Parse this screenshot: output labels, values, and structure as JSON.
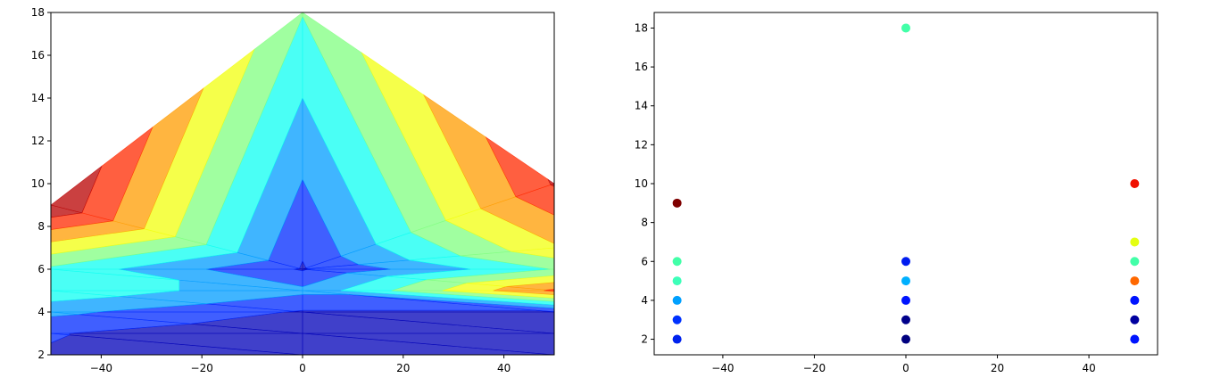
{
  "chart_data": [
    {
      "type": "contourf",
      "title": "",
      "xlabel": "",
      "ylabel": "",
      "xlim": [
        -50,
        50
      ],
      "ylim": [
        2,
        18
      ],
      "xticks": [
        -40,
        -20,
        0,
        20,
        40
      ],
      "yticks": [
        2,
        4,
        6,
        8,
        10,
        12,
        14,
        16,
        18
      ],
      "grid": false,
      "colormap": "jet",
      "alpha": 0.75,
      "triangulated_points": [
        {
          "x": -50,
          "y": 2,
          "v": 0.1
        },
        {
          "x": -50,
          "y": 3,
          "v": 0.12
        },
        {
          "x": -50,
          "y": 4,
          "v": 0.25
        },
        {
          "x": -50,
          "y": 5,
          "v": 0.42
        },
        {
          "x": -50,
          "y": 6,
          "v": 0.42
        },
        {
          "x": -50,
          "y": 9,
          "v": 1.0
        },
        {
          "x": 0,
          "y": 2,
          "v": 0.0
        },
        {
          "x": 0,
          "y": 3,
          "v": 0.0
        },
        {
          "x": 0,
          "y": 4,
          "v": 0.1
        },
        {
          "x": 0,
          "y": 5,
          "v": 0.25
        },
        {
          "x": 0,
          "y": 6,
          "v": 0.1
        },
        {
          "x": 0,
          "y": 18,
          "v": 0.45
        },
        {
          "x": 50,
          "y": 2,
          "v": 0.1
        },
        {
          "x": 50,
          "y": 3,
          "v": 0.0
        },
        {
          "x": 50,
          "y": 4,
          "v": 0.1
        },
        {
          "x": 50,
          "y": 5,
          "v": 0.8
        },
        {
          "x": 50,
          "y": 6,
          "v": 0.45
        },
        {
          "x": 50,
          "y": 7,
          "v": 0.65
        },
        {
          "x": 50,
          "y": 10,
          "v": 0.9
        }
      ]
    },
    {
      "type": "scatter",
      "title": "",
      "xlabel": "",
      "ylabel": "",
      "xlim": [
        -55,
        55
      ],
      "ylim": [
        1.2,
        18.8
      ],
      "xticks": [
        -40,
        -20,
        0,
        20,
        40
      ],
      "yticks": [
        2,
        4,
        6,
        8,
        10,
        12,
        14,
        16,
        18
      ],
      "grid": false,
      "colormap": "jet",
      "points": [
        {
          "x": -50,
          "y": 2,
          "color": "#0022ee"
        },
        {
          "x": -50,
          "y": 3,
          "color": "#0032ff"
        },
        {
          "x": -50,
          "y": 4,
          "color": "#00a0ff"
        },
        {
          "x": -50,
          "y": 5,
          "color": "#3dffb9"
        },
        {
          "x": -50,
          "y": 6,
          "color": "#42ffa8"
        },
        {
          "x": -50,
          "y": 9,
          "color": "#7f0000"
        },
        {
          "x": 0,
          "y": 2,
          "color": "#00007f"
        },
        {
          "x": 0,
          "y": 3,
          "color": "#00008b"
        },
        {
          "x": 0,
          "y": 4,
          "color": "#0014ff"
        },
        {
          "x": 0,
          "y": 5,
          "color": "#00b0ff"
        },
        {
          "x": 0,
          "y": 6,
          "color": "#001cf0"
        },
        {
          "x": 0,
          "y": 18,
          "color": "#42ffa8"
        },
        {
          "x": 50,
          "y": 2,
          "color": "#0014ff"
        },
        {
          "x": 50,
          "y": 3,
          "color": "#00009f"
        },
        {
          "x": 50,
          "y": 4,
          "color": "#0014ff"
        },
        {
          "x": 50,
          "y": 5,
          "color": "#ff6800"
        },
        {
          "x": 50,
          "y": 6,
          "color": "#42ffa8"
        },
        {
          "x": 50,
          "y": 7,
          "color": "#e4ff13"
        },
        {
          "x": 50,
          "y": 10,
          "color": "#f01000"
        }
      ]
    }
  ]
}
